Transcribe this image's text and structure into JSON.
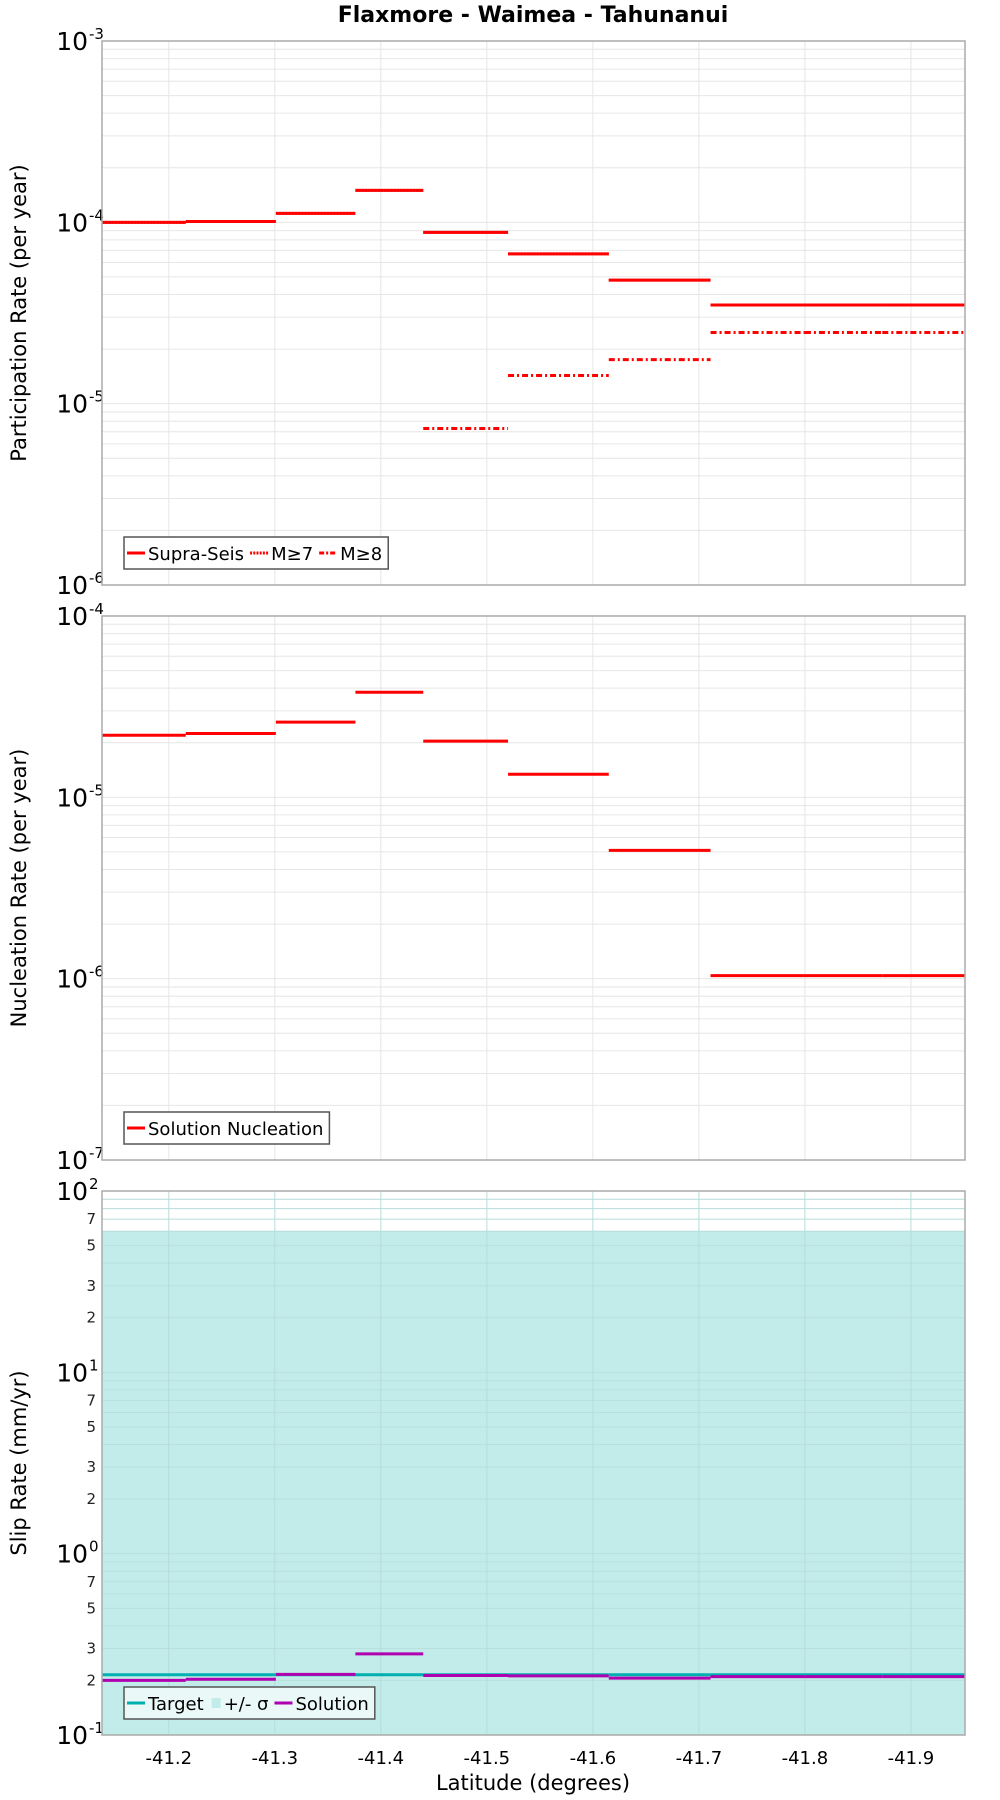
{
  "chart_data": [
    {
      "type": "line",
      "subtype": "step",
      "panel": "participation",
      "title": "Flaxmore - Waimea - Tahunanui",
      "xlabel": "Latitude (degrees)",
      "ylabel": "Participation Rate (per year)",
      "yscale": "log",
      "ylim": [
        1e-06,
        0.001
      ],
      "y_tick_labels": [
        "10^-6",
        "10^-5",
        "10^-4",
        "10^-3"
      ],
      "xlim": [
        -41.137,
        -41.951
      ],
      "segment_edges": [
        -41.137,
        -41.216,
        -41.301,
        -41.376,
        -41.44,
        -41.52,
        -41.615,
        -41.711,
        -41.8,
        -41.873,
        -41.951
      ],
      "series": [
        {
          "name": "Supra-Seis",
          "color": "#ff0000",
          "style": "solid",
          "values": [
            0.0001,
            0.000101,
            0.000112,
            0.00015,
            8.8e-05,
            6.7e-05,
            4.8e-05,
            3.5e-05,
            3.5e-05,
            3.5e-05
          ]
        },
        {
          "name": "M≥7",
          "color": "#ff0000",
          "style": "dotted",
          "values": [
            0.0001,
            0.000101,
            0.000112,
            0.00015,
            8.8e-05,
            6.7e-05,
            4.8e-05,
            3.5e-05,
            3.5e-05,
            3.5e-05
          ]
        },
        {
          "name": "M≥8",
          "color": "#ff0000",
          "style": "dashdot",
          "values": [
            null,
            null,
            null,
            null,
            7.3e-06,
            1.43e-05,
            1.75e-05,
            2.47e-05,
            2.47e-05,
            2.47e-05
          ]
        }
      ],
      "legend": [
        "Supra-Seis",
        "M≥7",
        "M≥8"
      ],
      "legend_position": "lower left",
      "grid": true
    },
    {
      "type": "line",
      "subtype": "step",
      "panel": "nucleation",
      "xlabel": "Latitude (degrees)",
      "ylabel": "Nucleation Rate (per year)",
      "yscale": "log",
      "ylim": [
        1e-07,
        0.0001
      ],
      "y_tick_labels": [
        "10^-7",
        "10^-6",
        "10^-5",
        "10^-4"
      ],
      "xlim": [
        -41.137,
        -41.951
      ],
      "segment_edges": [
        -41.137,
        -41.216,
        -41.301,
        -41.376,
        -41.44,
        -41.52,
        -41.615,
        -41.711,
        -41.8,
        -41.873,
        -41.951
      ],
      "series": [
        {
          "name": "Solution Nucleation",
          "color": "#ff0000",
          "style": "solid",
          "values": [
            2.2e-05,
            2.25e-05,
            2.6e-05,
            3.8e-05,
            2.04e-05,
            1.34e-05,
            5.1e-06,
            1.04e-06,
            1.04e-06,
            1.04e-06
          ]
        }
      ],
      "legend": [
        "Solution Nucleation"
      ],
      "legend_position": "lower left",
      "grid": true
    },
    {
      "type": "line",
      "subtype": "step",
      "panel": "slip",
      "xlabel": "Latitude (degrees)",
      "ylabel": "Slip Rate (mm/yr)",
      "yscale": "log",
      "ylim": [
        0.1,
        100
      ],
      "y_tick_labels": [
        "10^-1",
        "2",
        "3",
        "5",
        "7",
        "10^0",
        "2",
        "3",
        "5",
        "7",
        "10^1",
        "2",
        "3",
        "5",
        "7",
        "10^2"
      ],
      "x_tick_labels": [
        "-41.2",
        "-41.3",
        "-41.4",
        "-41.5",
        "-41.6",
        "-41.7",
        "-41.8",
        "-41.9"
      ],
      "xlim": [
        -41.137,
        -41.951
      ],
      "segment_edges": [
        -41.137,
        -41.216,
        -41.301,
        -41.376,
        -41.44,
        -41.52,
        -41.615,
        -41.711,
        -41.8,
        -41.873,
        -41.951
      ],
      "series": [
        {
          "name": "Target",
          "color": "#00b0b0",
          "style": "solid",
          "values": [
            0.215,
            0.215,
            0.215,
            0.215,
            0.215,
            0.215,
            0.215,
            0.215,
            0.215,
            0.215
          ]
        },
        {
          "name": "+/- σ",
          "color": "#c2ecea",
          "style": "band",
          "lower": 0.1,
          "upper": 60
        },
        {
          "name": "Solution",
          "color": "#b000b0",
          "style": "solid",
          "values": [
            0.2,
            0.203,
            0.216,
            0.28,
            0.213,
            0.212,
            0.206,
            0.21,
            0.21,
            0.21
          ]
        }
      ],
      "legend": [
        "Target",
        "+/- σ",
        "Solution"
      ],
      "legend_position": "lower left",
      "grid": true
    }
  ],
  "figure": {
    "title": "Flaxmore - Waimea - Tahunanui",
    "xlabel": "Latitude (degrees)",
    "panels": [
      {
        "ylabel": "Participation Rate (per year)",
        "legend": [
          {
            "label": "Supra-Seis",
            "style": "solid"
          },
          {
            "label": "M≥7",
            "style": "dotted"
          },
          {
            "label": "M≥8",
            "style": "dashdot"
          }
        ]
      },
      {
        "ylabel": "Nucleation Rate (per year)",
        "legend": [
          {
            "label": "Solution Nucleation",
            "style": "solid"
          }
        ]
      },
      {
        "ylabel": "Slip Rate (mm/yr)",
        "legend": [
          {
            "label": "Target",
            "style": "solid"
          },
          {
            "label": "+/- σ",
            "style": "band"
          },
          {
            "label": "Solution",
            "style": "solid"
          }
        ]
      }
    ],
    "x_ticks": [
      {
        "value": -41.2,
        "label": "-41.2"
      },
      {
        "value": -41.3,
        "label": "-41.3"
      },
      {
        "value": -41.4,
        "label": "-41.4"
      },
      {
        "value": -41.5,
        "label": "-41.5"
      },
      {
        "value": -41.6,
        "label": "-41.6"
      },
      {
        "value": -41.7,
        "label": "-41.7"
      },
      {
        "value": -41.8,
        "label": "-41.8"
      },
      {
        "value": -41.9,
        "label": "-41.9"
      }
    ],
    "colors": {
      "red": "#ff0000",
      "target": "#00b0b0",
      "band": "#c2ecea",
      "solution": "#b000b0",
      "grid": "#e6e6e6",
      "frame": "#aaaaaa"
    }
  }
}
